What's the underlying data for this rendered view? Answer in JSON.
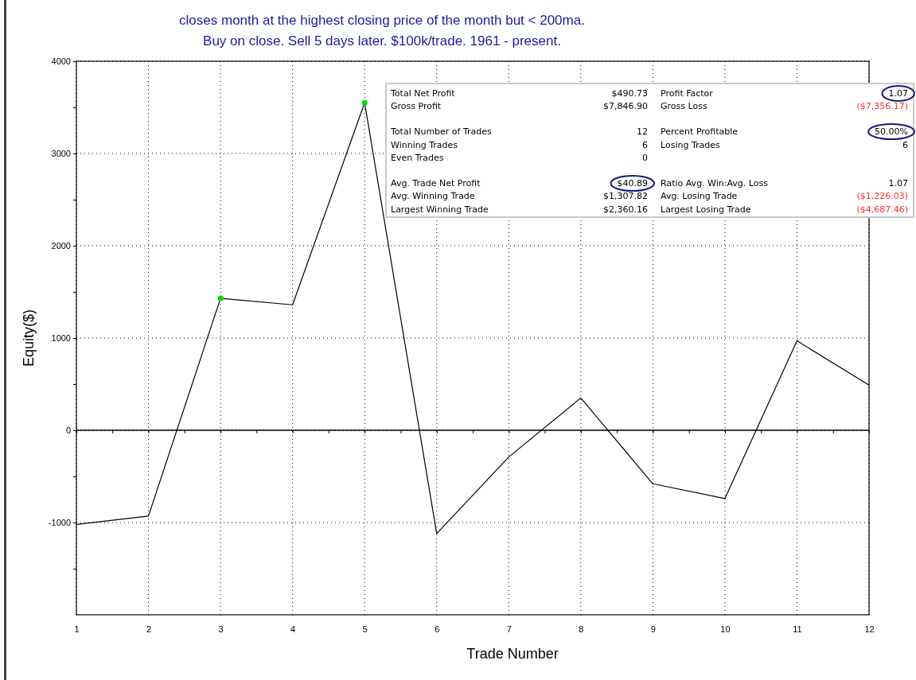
{
  "chart_data": {
    "type": "line",
    "title": "closes month at the highest closing price of the month but < 200ma.",
    "subtitle": "Buy on close. Sell 5 days later. $100k/trade. 1961 - present.",
    "xlabel": "Trade Number",
    "ylabel": "Equity($)",
    "xlim": [
      1,
      12
    ],
    "xticks": [
      1,
      {
        "value": 1.5,
        "label": null
      },
      2,
      {
        "value": 2.5,
        "label": null
      },
      3,
      {
        "value": 3.5,
        "label": null
      },
      4,
      {
        "value": 4.5,
        "label": null
      },
      5,
      {
        "value": 5.5,
        "label": null
      },
      6,
      {
        "value": 6.5,
        "label": null
      },
      7,
      {
        "value": 7.5,
        "label": null
      },
      8,
      {
        "value": 8.5,
        "label": null
      },
      9,
      {
        "value": 9.5,
        "label": null
      },
      10,
      {
        "value": 10.5,
        "label": null
      },
      11,
      {
        "value": 11.5,
        "label": null
      },
      12
    ],
    "ylim": [
      -2000,
      4000
    ],
    "yticks": [
      {
        "value": -1500,
        "label": null
      },
      -1000,
      {
        "value": -500,
        "label": null
      },
      0,
      {
        "value": 500,
        "label": null
      },
      1000,
      {
        "value": 1500,
        "label": null
      },
      2000,
      {
        "value": 2500,
        "label": null
      },
      3000,
      {
        "value": 3500,
        "label": null
      },
      4000
    ],
    "grid": true,
    "line_style": "solid",
    "series": [
      {
        "type": "line",
        "color": "#000000",
        "x": [
          1,
          2,
          3,
          4,
          5,
          6,
          7,
          8,
          9,
          10,
          11,
          12
        ],
        "values": [
          -1020,
          -930,
          1430,
          1360,
          3550,
          -1120,
          -290,
          350,
          -580,
          -740,
          970,
          490
        ]
      },
      {
        "type": "scatter",
        "color": "#00e000",
        "marker": "circle",
        "x": [
          3,
          5
        ],
        "values": [
          1430,
          3550
        ]
      }
    ],
    "annotations": [
      "Total Net Profit",
      "$490.73",
      "Profit Factor",
      "1.07",
      "Gross Profit",
      "$7,846.90",
      "Gross Loss",
      "($7,356.17)",
      "Total Number of Trades",
      "12",
      "Percent Profitable",
      "50.00%",
      "Winning Trades",
      "6",
      "Losing Trades",
      "6",
      "Even Trades",
      "0",
      "Avg. Trade Net Profit",
      "$40.89",
      "Ratio Avg. Win:Avg. Loss",
      "1.07",
      "Avg. Winning Trade",
      "$1,307.82",
      "Avg. Losing Trade",
      "($1,226.03)",
      "Largest Winning Trade",
      "$2,360.16",
      "Largest Losing Trade",
      "($4,687.46)"
    ]
  }
}
